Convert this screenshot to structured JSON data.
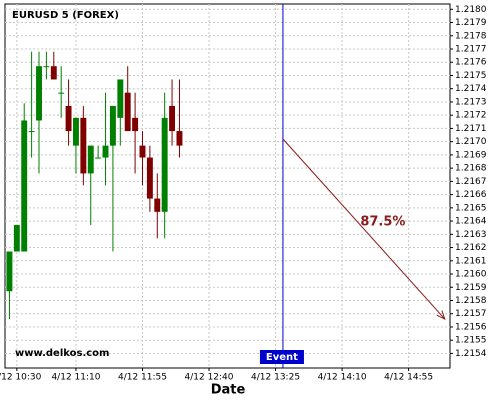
{
  "chart_data": {
    "type": "candlestick",
    "title": "EURUSD 5 (FOREX)",
    "x_label": "Date",
    "watermark": "www.delkos.com",
    "up_color": "#008000",
    "down_color": "#800000",
    "grid": true,
    "x": [
      0,
      1,
      2,
      3,
      4,
      5,
      6,
      7,
      8,
      9,
      10,
      11,
      12,
      13,
      14,
      15,
      16,
      17,
      18,
      19,
      20,
      21,
      22,
      23
    ],
    "open": [
      1.21587,
      1.21617,
      1.21617,
      1.21708,
      1.21716,
      1.21757,
      1.21757,
      1.21737,
      1.21727,
      1.21697,
      1.21718,
      1.21676,
      1.21688,
      1.21688,
      1.21697,
      1.21718,
      1.21737,
      1.21718,
      1.21697,
      1.21688,
      1.21657,
      1.21647,
      1.21727,
      1.21708
    ],
    "high": [
      1.21617,
      1.21637,
      1.21729,
      1.21768,
      1.21768,
      1.21768,
      1.21768,
      1.21757,
      1.21747,
      1.21718,
      1.21727,
      1.21697,
      1.21697,
      1.21737,
      1.21727,
      1.21747,
      1.21757,
      1.21737,
      1.21708,
      1.21697,
      1.21676,
      1.21737,
      1.21747,
      1.21747
    ],
    "low": [
      1.21566,
      1.21617,
      1.21617,
      1.21688,
      1.21676,
      1.21747,
      1.21747,
      1.21718,
      1.21697,
      1.21676,
      1.21667,
      1.21637,
      1.21688,
      1.21667,
      1.21617,
      1.21697,
      1.21708,
      1.21676,
      1.21667,
      1.21647,
      1.21627,
      1.21627,
      1.21697,
      1.21688
    ],
    "close": [
      1.21617,
      1.21637,
      1.21716,
      1.21708,
      1.21757,
      1.21757,
      1.21747,
      1.21737,
      1.21708,
      1.21718,
      1.21676,
      1.21697,
      1.21688,
      1.21697,
      1.21727,
      1.21747,
      1.21708,
      1.21708,
      1.21688,
      1.21657,
      1.21647,
      1.21718,
      1.21708,
      1.21697
    ],
    "xlim": [
      -0.6,
      59.6
    ],
    "xticks": [
      {
        "value": 1,
        "label": "4/12 10:30"
      },
      {
        "value": 9,
        "label": "4/12 11:10"
      },
      {
        "value": 18,
        "label": "4/12 11:55"
      },
      {
        "value": 27,
        "label": "4/12 12:40"
      },
      {
        "value": 36,
        "label": "4/12 13:25"
      },
      {
        "value": 45,
        "label": "4/12 14:10"
      },
      {
        "value": 54,
        "label": "4/12 14:55"
      }
    ],
    "ylim": [
      1.21529,
      1.21804
    ],
    "yticks": [
      1.2154,
      1.2155,
      1.2156,
      1.2157,
      1.2158,
      1.2159,
      {
        "value": 1.216,
        "label": "1.2160"
      },
      1.2161,
      1.2162,
      1.2163,
      1.2164,
      1.2165,
      1.2166,
      1.2167,
      1.2168,
      1.2169,
      {
        "value": 1.217,
        "label": "1.2170"
      },
      1.2171,
      1.2172,
      1.2173,
      1.2174,
      1.2175,
      1.2176,
      1.2177,
      1.2178,
      1.2179,
      {
        "value": 1.218,
        "label": "1.2180"
      }
    ],
    "annotations": [
      {
        "type": "vline",
        "x": 37,
        "label": "Event",
        "color": "#0000cc"
      },
      {
        "type": "arrow",
        "x": [
          37,
          58.9
        ],
        "y": [
          1.21702,
          1.21566
        ],
        "label": "87.5%",
        "color": "#8b1a1a"
      }
    ]
  }
}
